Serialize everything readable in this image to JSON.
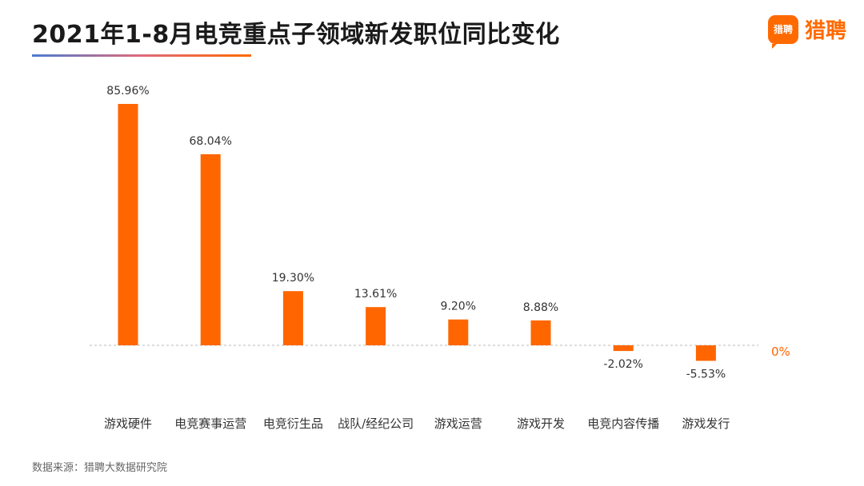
{
  "title": "2021年1-8月电竞重点子领域新发职位同比变化",
  "brand": {
    "mark_text": "猎聘",
    "name": "猎聘",
    "color": "#ff6a00"
  },
  "source": "数据来源：猎聘大数据研究院",
  "chart_data": {
    "type": "bar",
    "title": "2021年1-8月电竞重点子领域新发职位同比变化",
    "xlabel": "",
    "ylabel": "",
    "categories": [
      "游戏硬件",
      "电竞赛事运营",
      "电竞衍生品",
      "战队/经纪公司",
      "游戏运营",
      "游戏开发",
      "电竞内容传播",
      "游戏发行"
    ],
    "values": [
      85.96,
      68.04,
      19.3,
      13.61,
      9.2,
      8.88,
      -2.02,
      -5.53
    ],
    "value_labels": [
      "85.96%",
      "68.04%",
      "19.30%",
      "13.61%",
      "9.20%",
      "8.88%",
      "-2.02%",
      "-5.53%"
    ],
    "ylim": [
      -6.5,
      86
    ],
    "zero_label": "0%",
    "bar_color": "#ff6600",
    "grid": false,
    "legend": "none"
  }
}
